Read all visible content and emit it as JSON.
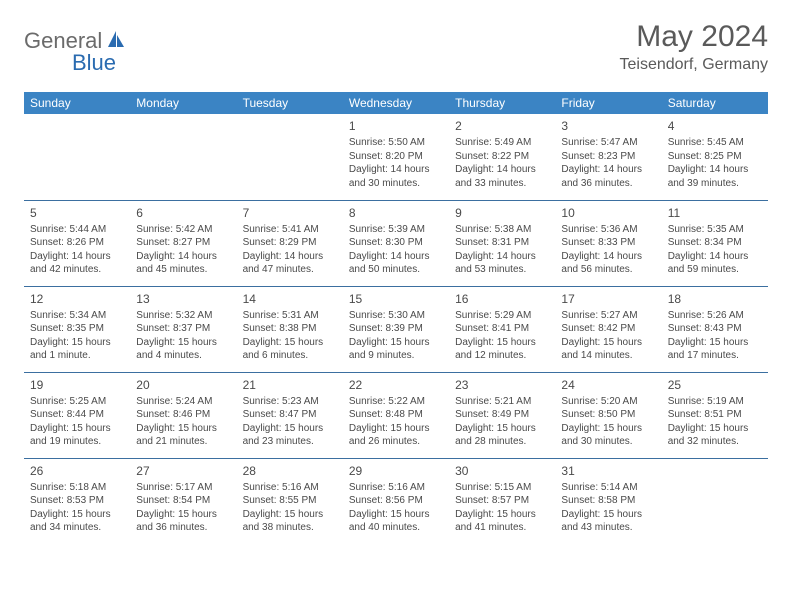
{
  "logo": {
    "text1": "General",
    "text2": "Blue"
  },
  "title": "May 2024",
  "location": "Teisendorf, Germany",
  "colors": {
    "header_bg": "#3b84c4",
    "header_text": "#ffffff",
    "rule": "#3b6fa0",
    "text": "#4a4a4a",
    "logo_gray": "#6b6b6b",
    "logo_blue": "#2a6bb0"
  },
  "day_headers": [
    "Sunday",
    "Monday",
    "Tuesday",
    "Wednesday",
    "Thursday",
    "Friday",
    "Saturday"
  ],
  "weeks": [
    [
      null,
      null,
      null,
      {
        "n": "1",
        "sr": "Sunrise: 5:50 AM",
        "ss": "Sunset: 8:20 PM",
        "dl": "Daylight: 14 hours and 30 minutes."
      },
      {
        "n": "2",
        "sr": "Sunrise: 5:49 AM",
        "ss": "Sunset: 8:22 PM",
        "dl": "Daylight: 14 hours and 33 minutes."
      },
      {
        "n": "3",
        "sr": "Sunrise: 5:47 AM",
        "ss": "Sunset: 8:23 PM",
        "dl": "Daylight: 14 hours and 36 minutes."
      },
      {
        "n": "4",
        "sr": "Sunrise: 5:45 AM",
        "ss": "Sunset: 8:25 PM",
        "dl": "Daylight: 14 hours and 39 minutes."
      }
    ],
    [
      {
        "n": "5",
        "sr": "Sunrise: 5:44 AM",
        "ss": "Sunset: 8:26 PM",
        "dl": "Daylight: 14 hours and 42 minutes."
      },
      {
        "n": "6",
        "sr": "Sunrise: 5:42 AM",
        "ss": "Sunset: 8:27 PM",
        "dl": "Daylight: 14 hours and 45 minutes."
      },
      {
        "n": "7",
        "sr": "Sunrise: 5:41 AM",
        "ss": "Sunset: 8:29 PM",
        "dl": "Daylight: 14 hours and 47 minutes."
      },
      {
        "n": "8",
        "sr": "Sunrise: 5:39 AM",
        "ss": "Sunset: 8:30 PM",
        "dl": "Daylight: 14 hours and 50 minutes."
      },
      {
        "n": "9",
        "sr": "Sunrise: 5:38 AM",
        "ss": "Sunset: 8:31 PM",
        "dl": "Daylight: 14 hours and 53 minutes."
      },
      {
        "n": "10",
        "sr": "Sunrise: 5:36 AM",
        "ss": "Sunset: 8:33 PM",
        "dl": "Daylight: 14 hours and 56 minutes."
      },
      {
        "n": "11",
        "sr": "Sunrise: 5:35 AM",
        "ss": "Sunset: 8:34 PM",
        "dl": "Daylight: 14 hours and 59 minutes."
      }
    ],
    [
      {
        "n": "12",
        "sr": "Sunrise: 5:34 AM",
        "ss": "Sunset: 8:35 PM",
        "dl": "Daylight: 15 hours and 1 minute."
      },
      {
        "n": "13",
        "sr": "Sunrise: 5:32 AM",
        "ss": "Sunset: 8:37 PM",
        "dl": "Daylight: 15 hours and 4 minutes."
      },
      {
        "n": "14",
        "sr": "Sunrise: 5:31 AM",
        "ss": "Sunset: 8:38 PM",
        "dl": "Daylight: 15 hours and 6 minutes."
      },
      {
        "n": "15",
        "sr": "Sunrise: 5:30 AM",
        "ss": "Sunset: 8:39 PM",
        "dl": "Daylight: 15 hours and 9 minutes."
      },
      {
        "n": "16",
        "sr": "Sunrise: 5:29 AM",
        "ss": "Sunset: 8:41 PM",
        "dl": "Daylight: 15 hours and 12 minutes."
      },
      {
        "n": "17",
        "sr": "Sunrise: 5:27 AM",
        "ss": "Sunset: 8:42 PM",
        "dl": "Daylight: 15 hours and 14 minutes."
      },
      {
        "n": "18",
        "sr": "Sunrise: 5:26 AM",
        "ss": "Sunset: 8:43 PM",
        "dl": "Daylight: 15 hours and 17 minutes."
      }
    ],
    [
      {
        "n": "19",
        "sr": "Sunrise: 5:25 AM",
        "ss": "Sunset: 8:44 PM",
        "dl": "Daylight: 15 hours and 19 minutes."
      },
      {
        "n": "20",
        "sr": "Sunrise: 5:24 AM",
        "ss": "Sunset: 8:46 PM",
        "dl": "Daylight: 15 hours and 21 minutes."
      },
      {
        "n": "21",
        "sr": "Sunrise: 5:23 AM",
        "ss": "Sunset: 8:47 PM",
        "dl": "Daylight: 15 hours and 23 minutes."
      },
      {
        "n": "22",
        "sr": "Sunrise: 5:22 AM",
        "ss": "Sunset: 8:48 PM",
        "dl": "Daylight: 15 hours and 26 minutes."
      },
      {
        "n": "23",
        "sr": "Sunrise: 5:21 AM",
        "ss": "Sunset: 8:49 PM",
        "dl": "Daylight: 15 hours and 28 minutes."
      },
      {
        "n": "24",
        "sr": "Sunrise: 5:20 AM",
        "ss": "Sunset: 8:50 PM",
        "dl": "Daylight: 15 hours and 30 minutes."
      },
      {
        "n": "25",
        "sr": "Sunrise: 5:19 AM",
        "ss": "Sunset: 8:51 PM",
        "dl": "Daylight: 15 hours and 32 minutes."
      }
    ],
    [
      {
        "n": "26",
        "sr": "Sunrise: 5:18 AM",
        "ss": "Sunset: 8:53 PM",
        "dl": "Daylight: 15 hours and 34 minutes."
      },
      {
        "n": "27",
        "sr": "Sunrise: 5:17 AM",
        "ss": "Sunset: 8:54 PM",
        "dl": "Daylight: 15 hours and 36 minutes."
      },
      {
        "n": "28",
        "sr": "Sunrise: 5:16 AM",
        "ss": "Sunset: 8:55 PM",
        "dl": "Daylight: 15 hours and 38 minutes."
      },
      {
        "n": "29",
        "sr": "Sunrise: 5:16 AM",
        "ss": "Sunset: 8:56 PM",
        "dl": "Daylight: 15 hours and 40 minutes."
      },
      {
        "n": "30",
        "sr": "Sunrise: 5:15 AM",
        "ss": "Sunset: 8:57 PM",
        "dl": "Daylight: 15 hours and 41 minutes."
      },
      {
        "n": "31",
        "sr": "Sunrise: 5:14 AM",
        "ss": "Sunset: 8:58 PM",
        "dl": "Daylight: 15 hours and 43 minutes."
      },
      null
    ]
  ]
}
